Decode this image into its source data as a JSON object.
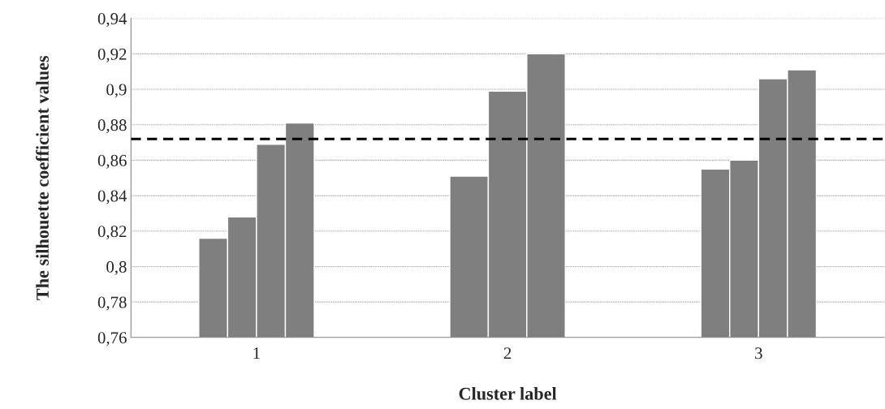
{
  "chart_data": {
    "type": "bar",
    "xlabel": "Cluster label",
    "ylabel": "The silhouette coefficient values",
    "categories": [
      "1",
      "2",
      "3"
    ],
    "series": [
      {
        "color": "#7f7f7f",
        "values": [
          0.816,
          0.851,
          0.855
        ]
      },
      {
        "color": "#7f7f7f",
        "values": [
          0.828,
          0.899,
          0.86
        ]
      },
      {
        "color": "#7f7f7f",
        "values": [
          0.869,
          0.92,
          0.906
        ]
      },
      {
        "color": "#7f7f7f",
        "values": [
          0.881,
          null,
          0.911
        ]
      }
    ],
    "ylim": [
      0.76,
      0.94
    ],
    "yticks": [
      {
        "value": 0.76,
        "label": "0,76"
      },
      {
        "value": 0.78,
        "label": "0,78"
      },
      {
        "value": 0.8,
        "label": "0,8"
      },
      {
        "value": 0.82,
        "label": "0,82"
      },
      {
        "value": 0.84,
        "label": "0,84"
      },
      {
        "value": 0.86,
        "label": "0,86"
      },
      {
        "value": 0.88,
        "label": "0,88"
      },
      {
        "value": 0.9,
        "label": "0,9"
      },
      {
        "value": 0.92,
        "label": "0,92"
      },
      {
        "value": 0.94,
        "label": "0,94"
      }
    ],
    "ref_lines": [
      {
        "axis": "y",
        "value": 0.872,
        "color": "#000000",
        "line_style": "dashed"
      }
    ],
    "grid": "y",
    "legend": false
  }
}
